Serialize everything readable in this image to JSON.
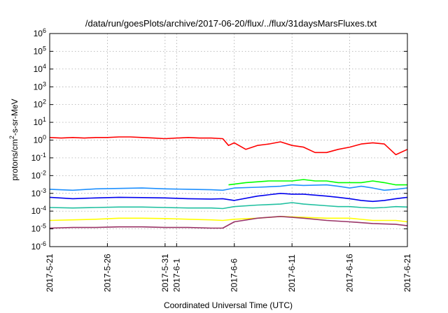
{
  "chart_data": {
    "type": "line",
    "title": "/data/run/goesPlots/archive/2017-06-20/flux/../flux/31daysMarsFluxes.txt",
    "xlabel": "Coordinated Universal Time (UTC)",
    "ylabel_main": "protons/cm",
    "ylabel_sup": "2",
    "ylabel_rest": "-s-sr-MeV",
    "y_scale": "log",
    "ylim": [
      1e-06,
      1000000.0
    ],
    "grid": true,
    "y_ticks": [
      {
        "exp": "-6"
      },
      {
        "exp": "-5"
      },
      {
        "exp": "-4"
      },
      {
        "exp": "-3"
      },
      {
        "exp": "-2"
      },
      {
        "exp": "-1"
      },
      {
        "exp": "0"
      },
      {
        "exp": "1"
      },
      {
        "exp": "2"
      },
      {
        "exp": "3"
      },
      {
        "exp": "4"
      },
      {
        "exp": "5"
      },
      {
        "exp": "6"
      }
    ],
    "y_tick_base": "10",
    "x_ticks": [
      "2017-5-21",
      "2017-5-26",
      "2017-5-31",
      "2017-6-1",
      "2017-6-6",
      "2017-6-11",
      "2017-6-16",
      "2017-6-21"
    ],
    "x_tick_days": [
      0,
      5,
      10,
      11,
      16,
      21,
      26,
      31
    ],
    "x_range_days": [
      0,
      31
    ],
    "series": [
      {
        "color": "#ff0000",
        "points": [
          [
            0,
            1.4
          ],
          [
            1,
            1.3
          ],
          [
            2,
            1.4
          ],
          [
            3,
            1.3
          ],
          [
            4,
            1.4
          ],
          [
            5,
            1.4
          ],
          [
            6,
            1.5
          ],
          [
            7,
            1.5
          ],
          [
            8,
            1.4
          ],
          [
            9,
            1.3
          ],
          [
            10,
            1.2
          ],
          [
            11,
            1.3
          ],
          [
            12,
            1.4
          ],
          [
            13,
            1.3
          ],
          [
            14,
            1.3
          ],
          [
            15,
            1.2
          ],
          [
            15.5,
            0.5
          ],
          [
            16,
            0.7
          ],
          [
            17,
            0.3
          ],
          [
            18,
            0.5
          ],
          [
            19,
            0.6
          ],
          [
            20,
            0.8
          ],
          [
            21,
            0.5
          ],
          [
            22,
            0.4
          ],
          [
            23,
            0.2
          ],
          [
            24,
            0.2
          ],
          [
            25,
            0.3
          ],
          [
            26,
            0.4
          ],
          [
            27,
            0.6
          ],
          [
            28,
            0.7
          ],
          [
            29,
            0.6
          ],
          [
            30,
            0.15
          ],
          [
            31,
            0.3
          ]
        ]
      },
      {
        "color": "#00ff00",
        "points": [
          [
            15.5,
            0.003
          ],
          [
            17,
            0.004
          ],
          [
            19,
            0.005
          ],
          [
            20,
            0.005
          ],
          [
            21,
            0.005
          ],
          [
            22,
            0.006
          ],
          [
            23,
            0.005
          ],
          [
            24,
            0.005
          ],
          [
            25,
            0.004
          ],
          [
            26,
            0.004
          ],
          [
            27,
            0.004
          ],
          [
            28,
            0.005
          ],
          [
            29,
            0.004
          ],
          [
            30,
            0.003
          ],
          [
            31,
            0.003
          ]
        ]
      },
      {
        "color": "#1e90ff",
        "points": [
          [
            0,
            0.0017
          ],
          [
            2,
            0.0015
          ],
          [
            4,
            0.0018
          ],
          [
            6,
            0.0019
          ],
          [
            8,
            0.002
          ],
          [
            10,
            0.0018
          ],
          [
            12,
            0.0017
          ],
          [
            14,
            0.0016
          ],
          [
            15,
            0.0015
          ],
          [
            16,
            0.002
          ],
          [
            18,
            0.0022
          ],
          [
            20,
            0.0025
          ],
          [
            21,
            0.003
          ],
          [
            22,
            0.0028
          ],
          [
            24,
            0.003
          ],
          [
            25,
            0.0025
          ],
          [
            26,
            0.002
          ],
          [
            27,
            0.0025
          ],
          [
            28,
            0.002
          ],
          [
            29,
            0.0015
          ],
          [
            30,
            0.0017
          ],
          [
            31,
            0.002
          ]
        ]
      },
      {
        "color": "#0000ee",
        "points": [
          [
            0,
            0.0006
          ],
          [
            2,
            0.0005
          ],
          [
            4,
            0.00055
          ],
          [
            6,
            0.0006
          ],
          [
            8,
            0.00058
          ],
          [
            10,
            0.00055
          ],
          [
            12,
            0.0005
          ],
          [
            14,
            0.00048
          ],
          [
            15,
            0.0005
          ],
          [
            16,
            0.0004
          ],
          [
            18,
            0.0007
          ],
          [
            20,
            0.001
          ],
          [
            21,
            0.0009
          ],
          [
            22,
            0.0009
          ],
          [
            24,
            0.0007
          ],
          [
            25,
            0.0006
          ],
          [
            26,
            0.0005
          ],
          [
            27,
            0.0004
          ],
          [
            28,
            0.00035
          ],
          [
            29,
            0.0004
          ],
          [
            30,
            0.0005
          ],
          [
            31,
            0.0006
          ]
        ]
      },
      {
        "color": "#20c0a0",
        "points": [
          [
            0,
            0.00016
          ],
          [
            2,
            0.00015
          ],
          [
            4,
            0.00016
          ],
          [
            6,
            0.00017
          ],
          [
            8,
            0.00017
          ],
          [
            10,
            0.00016
          ],
          [
            12,
            0.00015
          ],
          [
            14,
            0.00015
          ],
          [
            15,
            0.00014
          ],
          [
            16,
            0.00018
          ],
          [
            18,
            0.00022
          ],
          [
            20,
            0.00025
          ],
          [
            21,
            0.0003
          ],
          [
            22,
            0.00025
          ],
          [
            24,
            0.0002
          ],
          [
            25,
            0.00018
          ],
          [
            26,
            0.00018
          ],
          [
            27,
            0.00016
          ],
          [
            28,
            0.00015
          ],
          [
            29,
            0.00016
          ],
          [
            30,
            0.00018
          ],
          [
            31,
            0.00017
          ]
        ]
      },
      {
        "color": "#ffff00",
        "points": [
          [
            0,
            3e-05
          ],
          [
            2,
            3.2e-05
          ],
          [
            4,
            3.5e-05
          ],
          [
            6,
            4e-05
          ],
          [
            8,
            4e-05
          ],
          [
            10,
            3.8e-05
          ],
          [
            12,
            3.5e-05
          ],
          [
            14,
            3.2e-05
          ],
          [
            15,
            3e-05
          ],
          [
            16,
            3.5e-05
          ],
          [
            18,
            4e-05
          ],
          [
            20,
            5e-05
          ],
          [
            22,
            4.5e-05
          ],
          [
            24,
            4e-05
          ],
          [
            26,
            4e-05
          ],
          [
            28,
            3e-05
          ],
          [
            30,
            3e-05
          ],
          [
            31,
            2.5e-05
          ]
        ]
      },
      {
        "color": "#993366",
        "points": [
          [
            0,
            1.1e-05
          ],
          [
            2,
            1.2e-05
          ],
          [
            4,
            1.2e-05
          ],
          [
            6,
            1.3e-05
          ],
          [
            8,
            1.3e-05
          ],
          [
            10,
            1.2e-05
          ],
          [
            12,
            1.2e-05
          ],
          [
            14,
            1.1e-05
          ],
          [
            15,
            1.1e-05
          ],
          [
            16,
            2.5e-05
          ],
          [
            18,
            4e-05
          ],
          [
            20,
            5e-05
          ],
          [
            22,
            4e-05
          ],
          [
            24,
            3e-05
          ],
          [
            26,
            2.5e-05
          ],
          [
            28,
            2e-05
          ],
          [
            30,
            1.8e-05
          ],
          [
            31,
            1.5e-05
          ]
        ]
      }
    ]
  }
}
